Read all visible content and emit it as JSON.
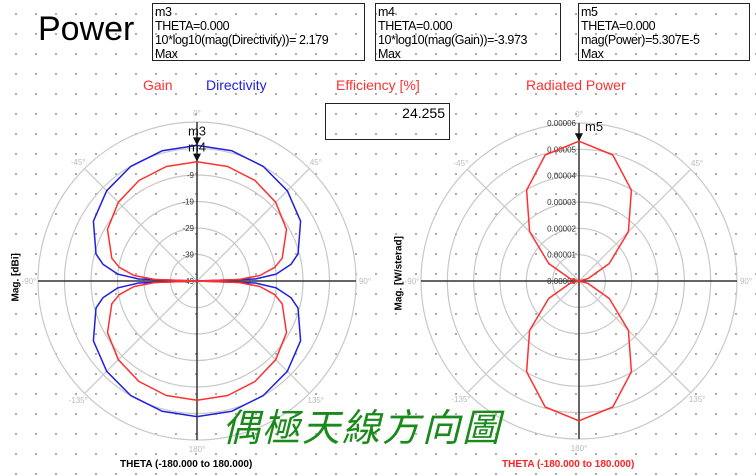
{
  "title": "Power",
  "markers": [
    {
      "name": "m3",
      "line1": "THETA=0.000",
      "line2": "10*log10(mag(Directivity))= 2.179",
      "line3": "Max"
    },
    {
      "name": "m4",
      "line1": "THETA=0.000",
      "line2": "10*log10(mag(Gain))=-3.973",
      "line3": "Max"
    },
    {
      "name": "m5",
      "line1": "THETA=0.000",
      "line2": "mag(Power)=5.307E-5",
      "line3": "Max"
    }
  ],
  "labels": {
    "gain": "Gain",
    "directivity": "Directivity",
    "efficiency": "Efficiency [%]",
    "radiated_power": "Radiated Power"
  },
  "efficiency_value": "24.255",
  "caption": "偶極天線方向圖",
  "colors": {
    "gain": "#ff3030",
    "directivity": "#2020e0",
    "power": "#ff3030",
    "grid": "#c8c8c8",
    "caption": "#1a8a1a"
  },
  "chart_data": [
    {
      "type": "polar-line",
      "ylabel": "Mag. [dBi]",
      "xlabel": "THETA (-180.000 to 180.000)",
      "radial_range": [
        -49,
        11
      ],
      "radial_ticks": [
        "-9",
        "-19",
        "-29",
        "-39",
        "-49"
      ],
      "angle_ticks": [
        "0°",
        "45°",
        "90°",
        "135°",
        "180°",
        "-135°",
        "-90°",
        "-45°"
      ],
      "theta": [
        -180,
        -165,
        -150,
        -135,
        -120,
        -105,
        -100,
        -95,
        -92,
        -90,
        -88,
        -85,
        -80,
        -75,
        -60,
        -45,
        -30,
        -15,
        0,
        15,
        30,
        45,
        60,
        75,
        80,
        85,
        88,
        90,
        92,
        95,
        100,
        105,
        120,
        135,
        150,
        165,
        180
      ],
      "series": [
        {
          "name": "Directivity",
          "color": "#2020e0",
          "values": [
            2.18,
            1.88,
            0.93,
            -0.83,
            -3.84,
            -9.56,
            -13.03,
            -19.01,
            -26.99,
            -49,
            -26.99,
            -19.01,
            -13.03,
            -9.56,
            -3.84,
            -0.83,
            0.93,
            1.88,
            2.179,
            1.88,
            0.93,
            -0.83,
            -3.84,
            -9.56,
            -13.03,
            -19.01,
            -26.99,
            -49,
            -26.99,
            -19.01,
            -13.03,
            -9.56,
            -3.84,
            -0.83,
            0.93,
            1.88,
            2.18
          ]
        },
        {
          "name": "Gain",
          "color": "#ff3030",
          "values": [
            -3.97,
            -4.27,
            -5.22,
            -6.98,
            -9.99,
            -15.71,
            -19.18,
            -25.16,
            -33.14,
            -49,
            -33.14,
            -25.16,
            -19.18,
            -15.71,
            -9.99,
            -6.98,
            -5.22,
            -4.27,
            -3.973,
            -4.27,
            -5.22,
            -6.98,
            -9.99,
            -15.71,
            -19.18,
            -25.16,
            -33.14,
            -49,
            -33.14,
            -25.16,
            -19.18,
            -15.71,
            -9.99,
            -6.98,
            -5.22,
            -4.27,
            -3.97
          ]
        }
      ],
      "markers": [
        {
          "name": "m3",
          "series": "Directivity",
          "theta": 0,
          "value": 2.179
        },
        {
          "name": "m4",
          "series": "Gain",
          "theta": 0,
          "value": -3.973
        }
      ]
    },
    {
      "type": "polar-line",
      "ylabel": "Mag. [W/sterad]",
      "xlabel": "THETA (-180.000 to 180.000)",
      "radial_range": [
        0,
        6e-05
      ],
      "radial_ticks": [
        "0.00006",
        "0.00005",
        "0.00004",
        "0.00003",
        "0.00002",
        "0.00001",
        "0.00000"
      ],
      "angle_ticks": [
        "0°",
        "45°",
        "90°",
        "135°",
        "180°",
        "-135°",
        "-90°",
        "-45°"
      ],
      "theta": [
        -180,
        -165,
        -150,
        -135,
        -120,
        -105,
        -90,
        -75,
        -60,
        -45,
        -30,
        -15,
        0,
        15,
        30,
        45,
        60,
        75,
        90,
        105,
        120,
        135,
        150,
        165,
        180
      ],
      "series": [
        {
          "name": "Radiated Power",
          "color": "#ff3030",
          "values": [
            5.307e-05,
            4.952e-05,
            3.98e-05,
            2.654e-05,
            1.327e-05,
            3.55e-06,
            0,
            3.55e-06,
            1.327e-05,
            2.654e-05,
            3.98e-05,
            4.952e-05,
            5.307e-05,
            4.952e-05,
            3.98e-05,
            2.654e-05,
            1.327e-05,
            3.55e-06,
            0,
            3.55e-06,
            1.327e-05,
            2.654e-05,
            3.98e-05,
            4.952e-05,
            5.307e-05
          ]
        }
      ],
      "markers": [
        {
          "name": "m5",
          "series": "Radiated Power",
          "theta": 0,
          "value": 5.307e-05
        }
      ]
    }
  ]
}
